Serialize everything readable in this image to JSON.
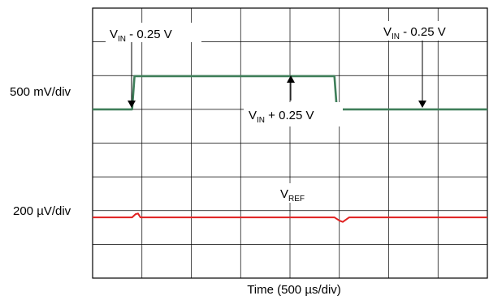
{
  "chart_data": {
    "type": "line",
    "xlabel": "Time (500 µs/div)",
    "grid": true,
    "x_divisions": 8,
    "y_divisions": 8,
    "channels": [
      {
        "name": "Input step",
        "scale": "500 mV/div",
        "color": "#3f7f5a"
      },
      {
        "name": "VREF",
        "scale": "200 µV/div",
        "color": "#e02020"
      }
    ],
    "series": [
      {
        "name": "Input step",
        "points": [
          [
            0,
            0
          ],
          [
            0.8,
            0
          ],
          [
            0.85,
            1
          ],
          [
            4.9,
            1
          ],
          [
            4.95,
            0
          ],
          [
            8,
            0
          ]
        ]
      },
      {
        "name": "VREF",
        "points": [
          [
            0,
            0
          ],
          [
            0.8,
            0
          ],
          [
            0.87,
            0.25
          ],
          [
            0.92,
            0.3
          ],
          [
            0.97,
            0
          ],
          [
            4.9,
            0
          ],
          [
            5.0,
            -0.25
          ],
          [
            5.07,
            -0.35
          ],
          [
            5.2,
            0
          ],
          [
            8,
            0
          ]
        ]
      }
    ],
    "annotations": [
      {
        "base": "V",
        "sub": "IN",
        "rest": " - 0.25 V"
      },
      {
        "base": "V",
        "sub": "IN",
        "rest": " - 0.25 V"
      },
      {
        "base": "V",
        "sub": "IN",
        "rest": " + 0.25 V"
      },
      {
        "base": "V",
        "sub": "REF",
        "rest": ""
      }
    ]
  }
}
